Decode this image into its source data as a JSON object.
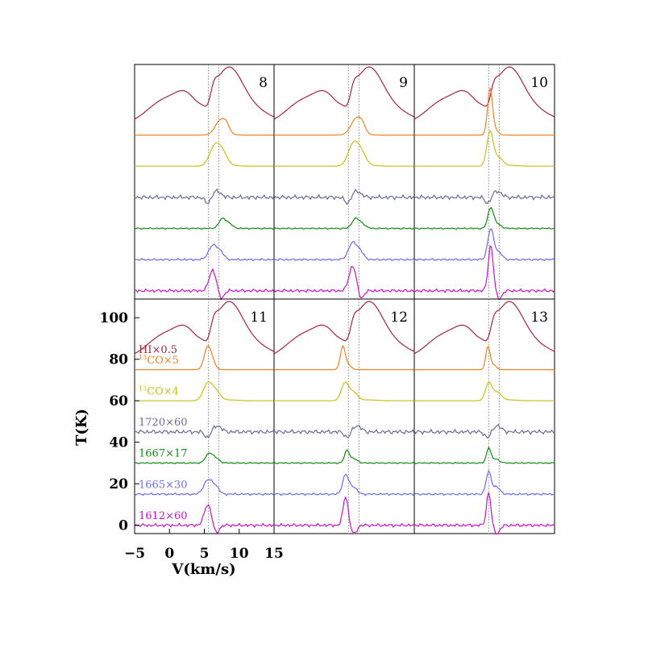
{
  "chart_data": {
    "type": "line",
    "xlabel": "V(km/s)",
    "ylabel": "T(K)",
    "xlim": [
      -5,
      15
    ],
    "ylim": [
      -4,
      109
    ],
    "x_ticks": [
      -5,
      0,
      5,
      10,
      15
    ],
    "x_tick_labels": [
      "−5",
      "0",
      "5",
      "10",
      "15"
    ],
    "y_ticks": [
      0,
      20,
      40,
      60,
      80,
      100
    ],
    "y_tick_labels": [
      "0",
      "20",
      "40",
      "60",
      "80",
      "100"
    ],
    "grid": false,
    "legend": "inline labels, left of panel 11",
    "reference_velocities": [
      5.6,
      7.1
    ],
    "panels": [
      {
        "id": "8",
        "peaks": [
          0.2,
          0.35,
          0.18,
          0.14,
          0.25
        ],
        "centers": [
          7.4,
          6.6,
          6.6,
          7.6,
          6.2
        ],
        "widths": [
          0.8,
          0.6,
          0.6,
          0.5,
          0.5
        ]
      },
      {
        "id": "9",
        "peaks": [
          0.22,
          0.38,
          0.18,
          0.14,
          0.3
        ],
        "centers": [
          6.8,
          6.4,
          6.4,
          6.6,
          6.2
        ],
        "widths": [
          0.8,
          0.6,
          0.6,
          0.5,
          0.5
        ]
      },
      {
        "id": "10",
        "peaks": [
          0.6,
          0.55,
          0.28,
          0.3,
          0.55
        ],
        "centers": [
          5.8,
          5.8,
          5.9,
          5.9,
          5.9
        ],
        "widths": [
          0.35,
          0.35,
          0.4,
          0.4,
          0.35
        ]
      },
      {
        "id": "11",
        "peaks": [
          0.3,
          0.28,
          0.2,
          0.14,
          0.25
        ],
        "centers": [
          5.5,
          5.5,
          5.6,
          5.7,
          5.5
        ],
        "widths": [
          0.5,
          0.5,
          0.5,
          0.5,
          0.5
        ]
      },
      {
        "id": "12",
        "peaks": [
          0.3,
          0.28,
          0.3,
          0.18,
          0.35
        ],
        "centers": [
          4.8,
          5.1,
          5.4,
          5.4,
          5.2
        ],
        "widths": [
          0.35,
          0.4,
          0.35,
          0.35,
          0.35
        ]
      },
      {
        "id": "13",
        "peaks": [
          0.3,
          0.28,
          0.35,
          0.22,
          0.4
        ],
        "centers": [
          5.5,
          5.6,
          5.6,
          5.6,
          5.6
        ],
        "widths": [
          0.3,
          0.35,
          0.3,
          0.3,
          0.3
        ]
      }
    ],
    "series": [
      {
        "name": "HI×0.5",
        "label_prefix": "HI×0.5",
        "label_sup": "",
        "label_suffix": "",
        "color": "#a3273e",
        "offset": 80
      },
      {
        "name": "13CO×5",
        "label_prefix": "",
        "label_sup": "13",
        "label_suffix": "CO×5",
        "color": "#f08222",
        "offset": 75
      },
      {
        "name": "13CO×4",
        "label_prefix": "",
        "label_sup": "13",
        "label_suffix": "CO×4",
        "color": "#c8c214",
        "offset": 60
      },
      {
        "name": "1720×60",
        "label_prefix": "1720×60",
        "label_sup": "",
        "label_suffix": "",
        "color": "#6a6a96",
        "offset": 45
      },
      {
        "name": "1667×17",
        "label_prefix": "1667×17",
        "label_sup": "",
        "label_suffix": "",
        "color": "#128c12",
        "offset": 30
      },
      {
        "name": "1665×30",
        "label_prefix": "1665×30",
        "label_sup": "",
        "label_suffix": "",
        "color": "#6c6cf0",
        "offset": 15
      },
      {
        "name": "1612×60",
        "label_prefix": "1612×60",
        "label_sup": "",
        "label_suffix": "",
        "color": "#c814c8",
        "offset": 0
      }
    ]
  }
}
